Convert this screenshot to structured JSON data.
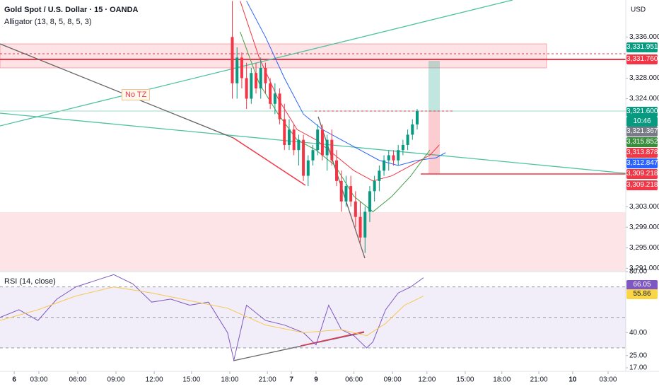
{
  "header": {
    "title": "Gold Spot / U.S. Dollar · 15 · OANDA",
    "indicator": "Alligator (13, 8, 5, 8, 5, 3)",
    "currency": "USD",
    "note": "No TZ"
  },
  "badges": [
    "3,331.951",
    "3,331.760",
    "3,321.600",
    "10:46",
    "3,321.367",
    "3,315.852",
    "3,313.878",
    "3,312.847",
    "3,309.218",
    "3,309.218",
    "66.05",
    "55.86"
  ],
  "chart_data": [
    {
      "type": "candlestick",
      "up_color": "#089981",
      "down_color": "#f23645",
      "x": [
        73.5,
        75,
        76.5,
        78,
        79.5,
        81,
        82.5,
        84,
        85.5,
        87,
        88.5,
        90,
        91.5,
        93,
        94.5,
        96,
        97.5,
        99,
        100.5,
        102,
        103.5,
        105,
        106.5,
        108,
        109.5,
        111,
        112.5,
        114,
        115.5,
        117,
        118.5,
        120,
        121.5,
        123,
        124.5,
        126,
        127.5,
        129,
        130.5,
        132
      ],
      "open": [
        3336,
        3327,
        3332,
        3328,
        3324,
        3329,
        3326,
        3330,
        3327,
        3323,
        3325,
        3320,
        3315,
        3318,
        3314,
        3316,
        3309,
        3312,
        3314,
        3318,
        3313,
        3316,
        3312,
        3308,
        3304,
        3307,
        3304,
        3301,
        3297,
        3302,
        3306,
        3308,
        3310,
        3312,
        3313,
        3312,
        3314,
        3315,
        3317,
        3319
      ],
      "high": [
        3343,
        3334,
        3333,
        3331,
        3330,
        3331,
        3332,
        3331,
        3328,
        3327,
        3326,
        3323,
        3320,
        3319,
        3317,
        3317,
        3313,
        3315,
        3319,
        3319,
        3317,
        3318,
        3314,
        3310,
        3309,
        3309,
        3306,
        3304,
        3303,
        3307,
        3309,
        3311,
        3313,
        3314,
        3314,
        3315,
        3316,
        3318,
        3320,
        3322
      ],
      "low": [
        3324,
        3324,
        3326,
        3322,
        3323,
        3325,
        3324,
        3325,
        3322,
        3321,
        3319,
        3314,
        3314,
        3313,
        3311,
        3308,
        3307,
        3311,
        3313,
        3312,
        3310,
        3311,
        3307,
        3302,
        3303,
        3303,
        3299,
        3296,
        3294,
        3300,
        3304,
        3306,
        3309,
        3310,
        3311,
        3311,
        3313,
        3314,
        3316,
        3318
      ],
      "close": [
        3327,
        3332,
        3328,
        3324,
        3329,
        3326,
        3330,
        3327,
        3323,
        3325,
        3320,
        3315,
        3318,
        3314,
        3316,
        3309,
        3312,
        3314,
        3318,
        3313,
        3316,
        3312,
        3308,
        3304,
        3307,
        3304,
        3301,
        3297,
        3302,
        3306,
        3308,
        3310,
        3312,
        3313,
        3312,
        3314,
        3315,
        3317,
        3319,
        3321.6
      ],
      "lines": [
        {
          "color": "#2962ff",
          "x": [
            78,
            84,
            90,
            96,
            102,
            108,
            114,
            120,
            126,
            132,
            138,
            141
          ],
          "values": [
            3343,
            3336,
            3328,
            3321,
            3318,
            3316,
            3314,
            3312,
            3311,
            3312,
            3312.5,
            3313.5
          ]
        },
        {
          "color": "#f23645",
          "x": [
            76,
            82,
            88,
            94,
            100,
            106,
            112,
            118,
            124,
            130,
            136,
            139
          ],
          "values": [
            3343,
            3332,
            3324,
            3318,
            3316,
            3313,
            3310,
            3308,
            3309,
            3311,
            3313,
            3315
          ]
        },
        {
          "color": "#43a047",
          "x": [
            76,
            82,
            88,
            94,
            100,
            106,
            112,
            118,
            124,
            130,
            136
          ],
          "values": [
            3337,
            3327,
            3321,
            3316,
            3314,
            3311,
            3305,
            3302,
            3305,
            3309,
            3314
          ]
        }
      ],
      "xlim": [
        0,
        198
      ],
      "ylim": [
        3290.5,
        3343.2
      ],
      "yticks": [
        {
          "value": 3336,
          "label": "3,336.000"
        },
        {
          "value": 3328,
          "label": "3,328.000"
        },
        {
          "value": 3324,
          "label": "3,324.000"
        },
        {
          "value": 3303,
          "label": "3,303.000"
        },
        {
          "value": 3299,
          "label": "3,299.000"
        },
        {
          "value": 3295,
          "label": "3,295.000"
        },
        {
          "value": 3291,
          "label": "3,291.000"
        }
      ],
      "xticks": [
        {
          "value": 4.5,
          "label": "6"
        },
        {
          "value": 12.3,
          "label": "03:00"
        },
        {
          "value": 24.6,
          "label": "06:00"
        },
        {
          "value": 36.7,
          "label": "09:00"
        },
        {
          "value": 48.8,
          "label": "12:00"
        },
        {
          "value": 60.6,
          "label": "15:00"
        },
        {
          "value": 72.7,
          "label": "18:00"
        },
        {
          "value": 84.6,
          "label": "21:00"
        },
        {
          "value": 92.2,
          "label": "7"
        },
        {
          "value": 100,
          "label": "9"
        },
        {
          "value": 112,
          "label": "06:00"
        },
        {
          "value": 124.2,
          "label": "09:00"
        },
        {
          "value": 135.1,
          "label": "12:00"
        },
        {
          "value": 147.2,
          "label": "15:00"
        },
        {
          "value": 158.8,
          "label": "18:00"
        },
        {
          "value": 170.5,
          "label": "21:00"
        },
        {
          "value": 181.2,
          "label": "10"
        },
        {
          "value": 192.4,
          "label": "03:00"
        }
      ]
    },
    {
      "type": "line",
      "title": "RSI (14, close)",
      "series": [
        {
          "color": "#7e57c2",
          "x": [
            0,
            6,
            12,
            18,
            24,
            30,
            36,
            42,
            48,
            54,
            60,
            66,
            72,
            74,
            78,
            84,
            90,
            96,
            100,
            104,
            108,
            112,
            116,
            118,
            122,
            126,
            130,
            134
          ],
          "values": [
            50,
            55,
            48,
            62,
            70,
            74,
            78,
            72,
            60,
            62,
            58,
            60,
            40,
            22,
            58,
            48,
            45,
            40,
            32,
            58,
            42,
            38,
            30,
            34,
            55,
            66,
            70,
            76
          ]
        },
        {
          "color": "#f9c74f",
          "x": [
            0,
            12,
            24,
            36,
            48,
            60,
            72,
            84,
            96,
            108,
            116,
            122,
            128,
            134
          ],
          "values": [
            48,
            55,
            64,
            70,
            66,
            61,
            56,
            45,
            40,
            42,
            38,
            46,
            58,
            64
          ]
        }
      ],
      "levels": [
        70,
        50,
        30
      ],
      "xlim": [
        0,
        198
      ],
      "ylim": [
        17,
        80
      ],
      "yticks": [
        {
          "value": 80,
          "label": "80.00"
        },
        {
          "value": 40,
          "label": "40.00"
        },
        {
          "value": 25,
          "label": "25.00"
        },
        {
          "value": 17,
          "label": "17.00"
        }
      ]
    }
  ]
}
